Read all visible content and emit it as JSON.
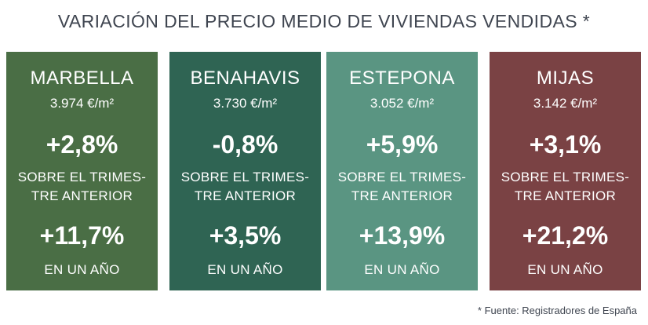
{
  "title": "VARIACIÓN DEL PRECIO MEDIO DE VIVIENDAS VENDIDAS *",
  "cards": [
    {
      "city": "MARBELLA",
      "price": "3.974 €/m²",
      "quarter_change": "+2,8%",
      "quarter_label_1": "SOBRE EL TRIMES-",
      "quarter_label_2": "TRE ANTERIOR",
      "year_change": "+11,7%",
      "year_label": "EN UN AÑO",
      "color": "#4a6e45"
    },
    {
      "city": "BENAHAVIS",
      "price": "3.730 €/m²",
      "quarter_change": "-0,8%",
      "quarter_label_1": "SOBRE EL TRIMES-",
      "quarter_label_2": "TRE ANTERIOR",
      "year_change": "+3,5%",
      "year_label": "EN UN AÑO",
      "color": "#2f6453"
    },
    {
      "city": "ESTEPONA",
      "price": "3.052 €/m²",
      "quarter_change": "+5,9%",
      "quarter_label_1": "SOBRE EL TRIMES-",
      "quarter_label_2": "TRE ANTERIOR",
      "year_change": "+13,9%",
      "year_label": "EN UN AÑO",
      "color": "#5a9582"
    },
    {
      "city": "MIJAS",
      "price": "3.142 €/m²",
      "quarter_change": "+3,1%",
      "quarter_label_1": "SOBRE EL TRIMES-",
      "quarter_label_2": "TRE ANTERIOR",
      "year_change": "+21,2%",
      "year_label": "EN UN AÑO",
      "color": "#7a4244"
    }
  ],
  "source": "* Fuente: Registradores de España"
}
